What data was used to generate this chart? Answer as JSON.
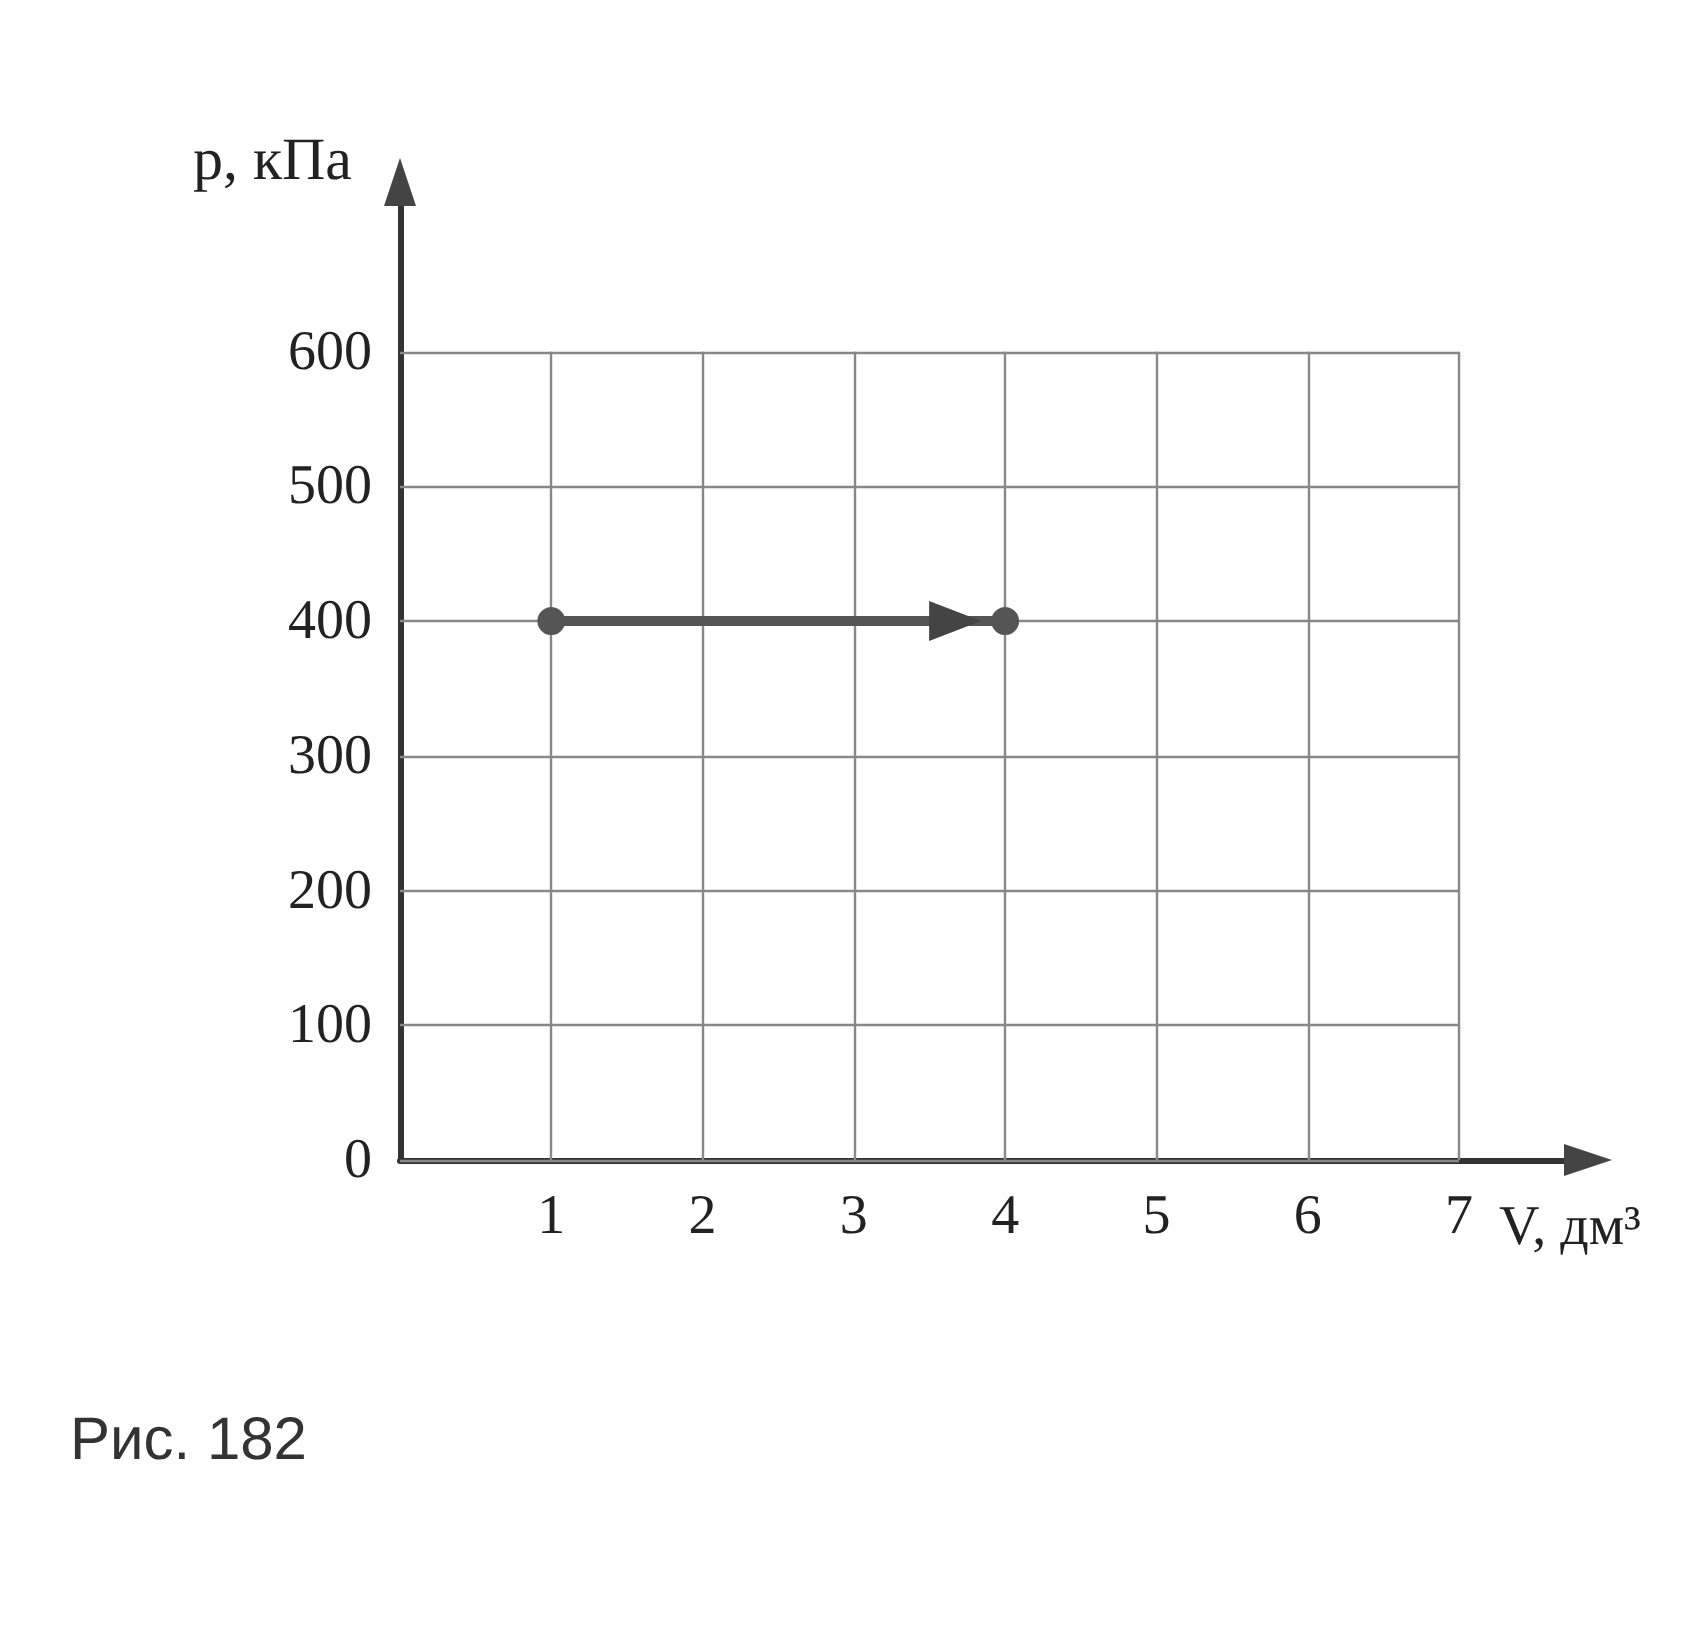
{
  "chart_data": {
    "type": "line",
    "xlabel": "V, дм³",
    "ylabel": "p, кПа",
    "x": [
      1,
      4
    ],
    "values": [
      400,
      400
    ],
    "color": "#555555",
    "marker": "circle",
    "line_style": "solid",
    "xlim": [
      0,
      7.8
    ],
    "xticks": [
      1,
      2,
      3,
      4,
      5,
      6,
      7
    ],
    "ylim": [
      0,
      720
    ],
    "yticks": [
      0,
      100,
      200,
      300,
      400,
      500,
      600
    ],
    "grid": true,
    "annotations": [
      "Рис. 182"
    ]
  }
}
